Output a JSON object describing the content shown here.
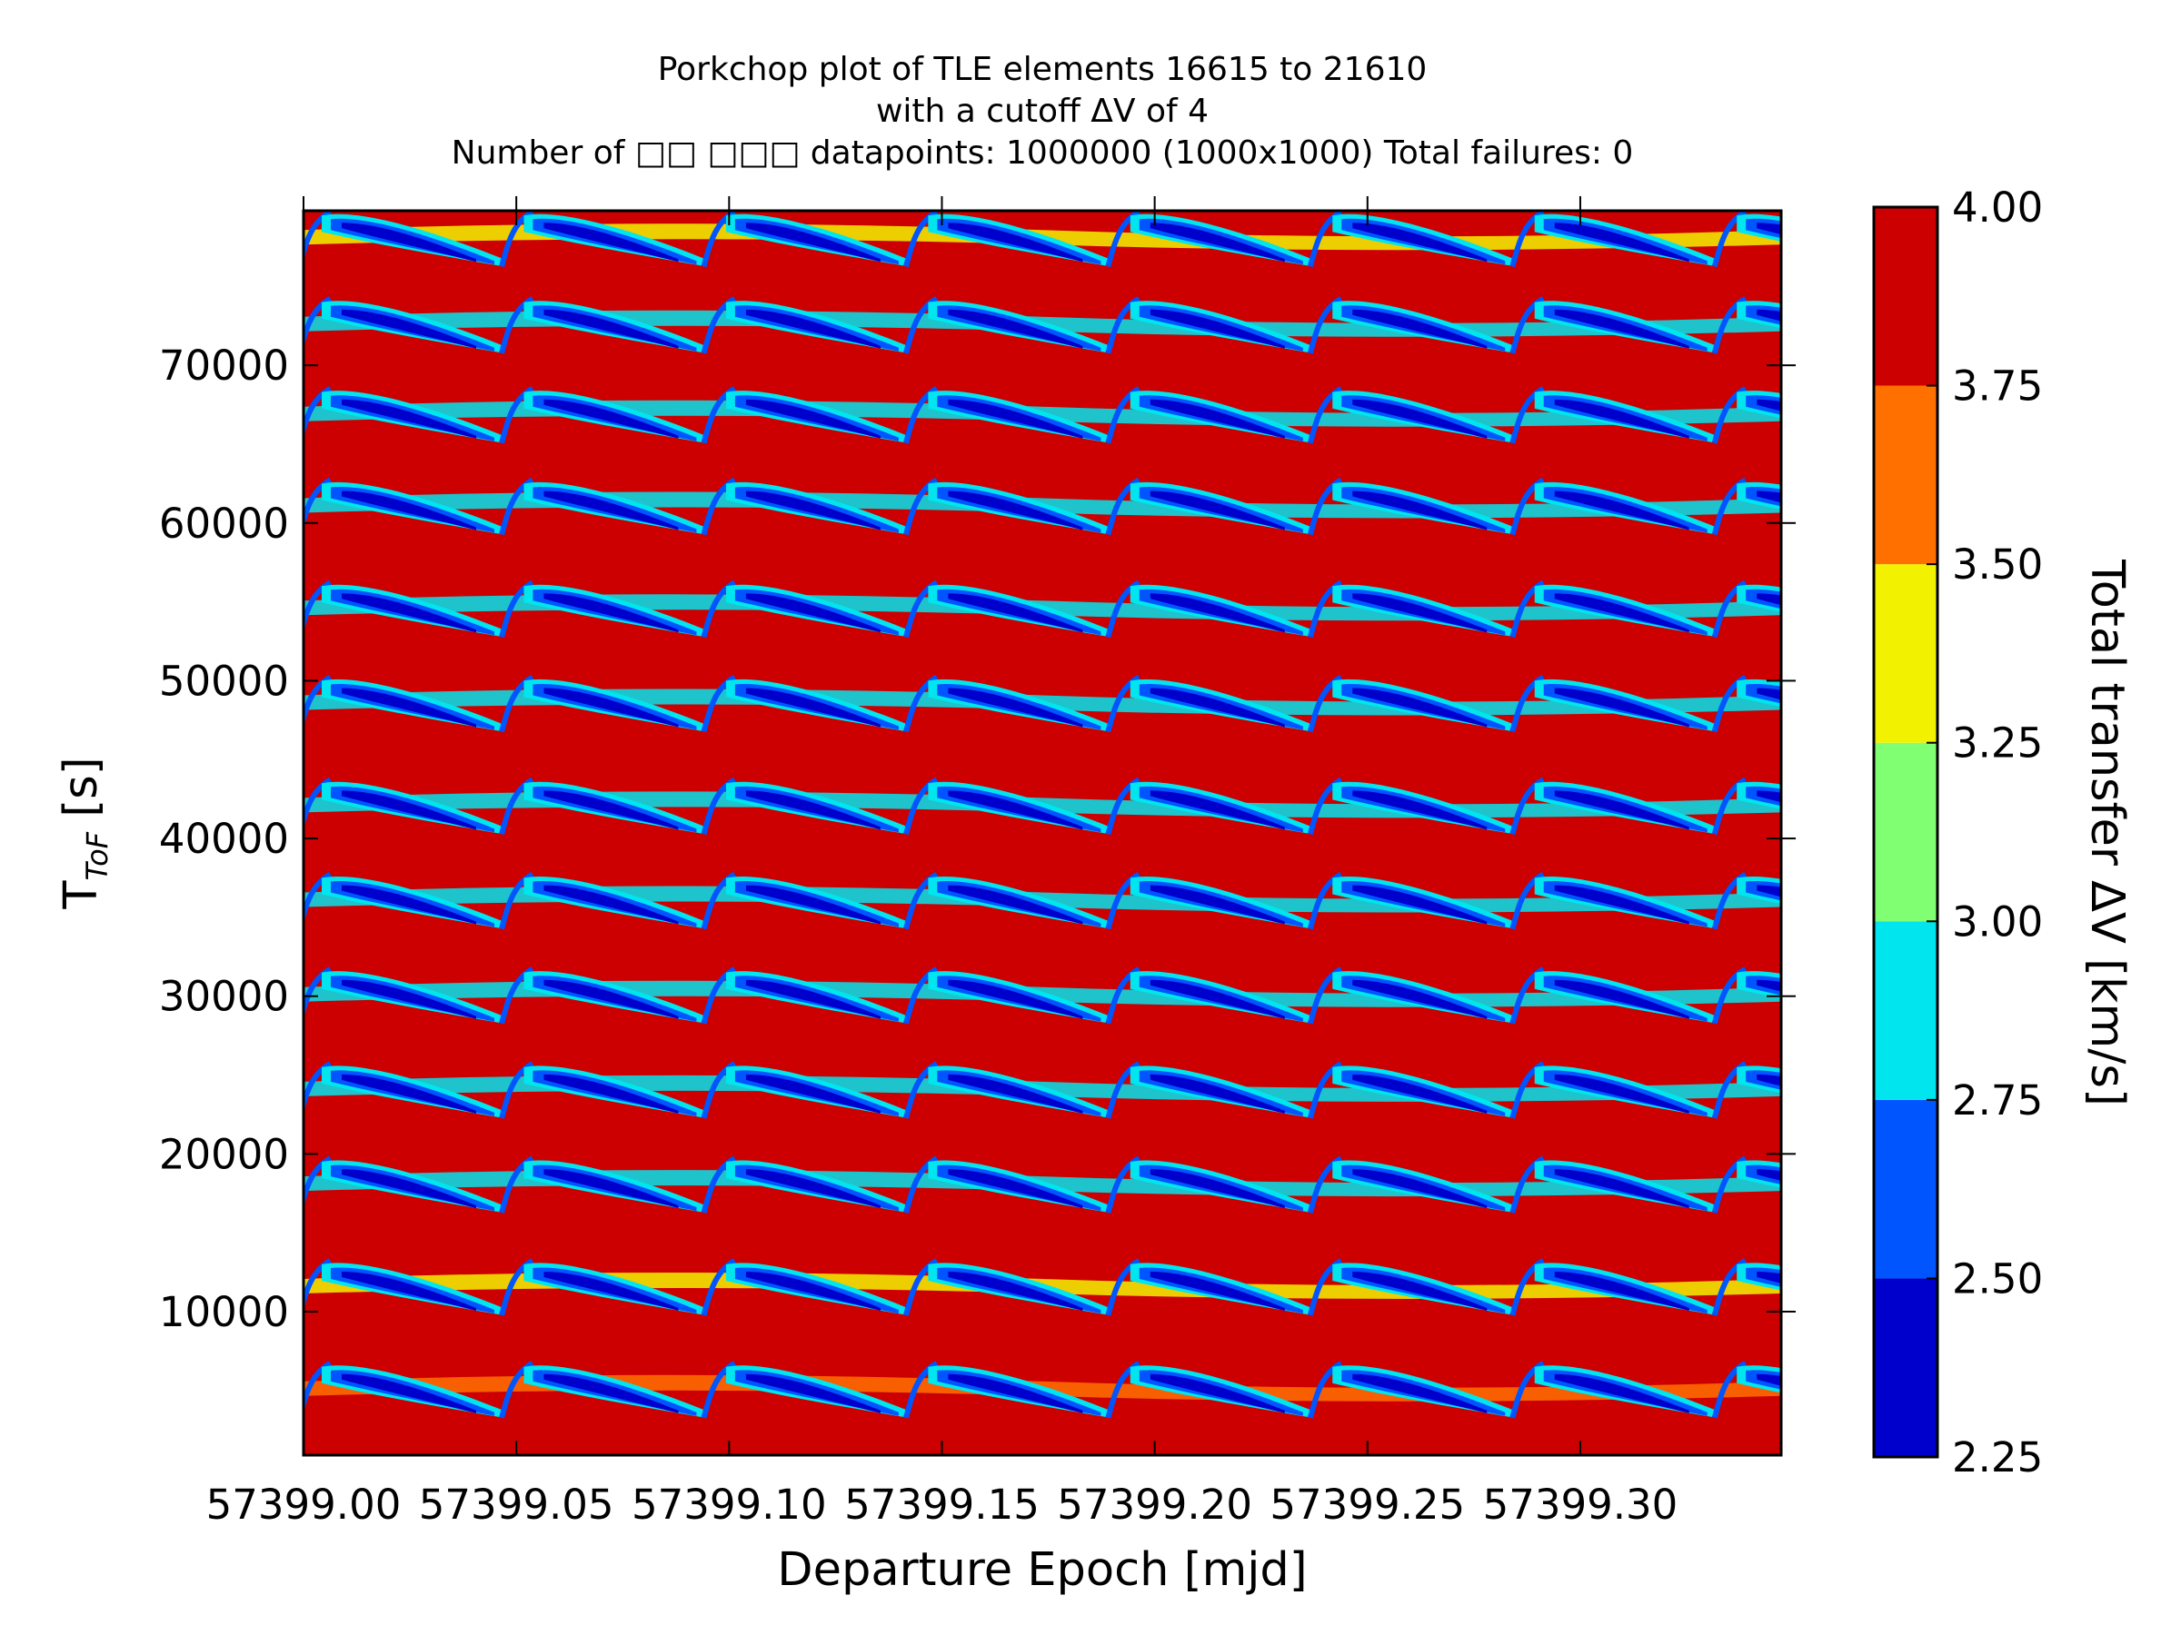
{
  "chart_data": {
    "type": "heatmap",
    "title_lines": [
      "Porkchop plot of TLE elements 16615 to 21610",
      "with a cutoff ΔV of 4",
      "Number of □□  □□□  datapoints: 1000000 (1000x1000) Total failures: 0"
    ],
    "xlabel": "Departure Epoch [mjd]",
    "ylabel_main": "T",
    "ylabel_sub": "ToF",
    "ylabel_unit": " [s]",
    "colorbar_label": "Total transfer ΔV [km/s]",
    "x_ticks": [
      "57399.00",
      "57399.05",
      "57399.10",
      "57399.15",
      "57399.20",
      "57399.25",
      "57399.30"
    ],
    "x_tick_values": [
      57399.0,
      57399.05,
      57399.1,
      57399.15,
      57399.2,
      57399.25,
      57399.3
    ],
    "xlim": [
      57399.0,
      57399.3472
    ],
    "y_ticks": [
      "10000",
      "20000",
      "30000",
      "40000",
      "50000",
      "60000",
      "70000"
    ],
    "y_tick_values": [
      10000,
      20000,
      30000,
      40000,
      50000,
      60000,
      70000
    ],
    "ylim": [
      900,
      79800
    ],
    "colorbar_ticks": [
      "2.25",
      "2.50",
      "2.75",
      "3.00",
      "3.25",
      "3.50",
      "3.75",
      "4.00"
    ],
    "colorbar_range": [
      2.25,
      4.0
    ],
    "levels": [
      {
        "range": [
          2.25,
          2.5
        ],
        "color": "#0000cc"
      },
      {
        "range": [
          2.5,
          2.75
        ],
        "color": "#0055ff"
      },
      {
        "range": [
          2.75,
          3.0
        ],
        "color": "#00e5ee"
      },
      {
        "range": [
          3.0,
          3.25
        ],
        "color": "#80ff72"
      },
      {
        "range": [
          3.25,
          3.5
        ],
        "color": "#f2f200"
      },
      {
        "range": [
          3.5,
          3.75
        ],
        "color": "#ff7000"
      },
      {
        "range": [
          3.75,
          4.0
        ],
        "color": "#cc0000"
      }
    ],
    "pattern": {
      "x_period_mjd": 0.0475,
      "band_centers_tof": [
        5000,
        11500,
        18000,
        24000,
        30000,
        36000,
        42000,
        48500,
        54500,
        61000,
        66800,
        72500,
        78000
      ],
      "cutoff": 4
    }
  }
}
